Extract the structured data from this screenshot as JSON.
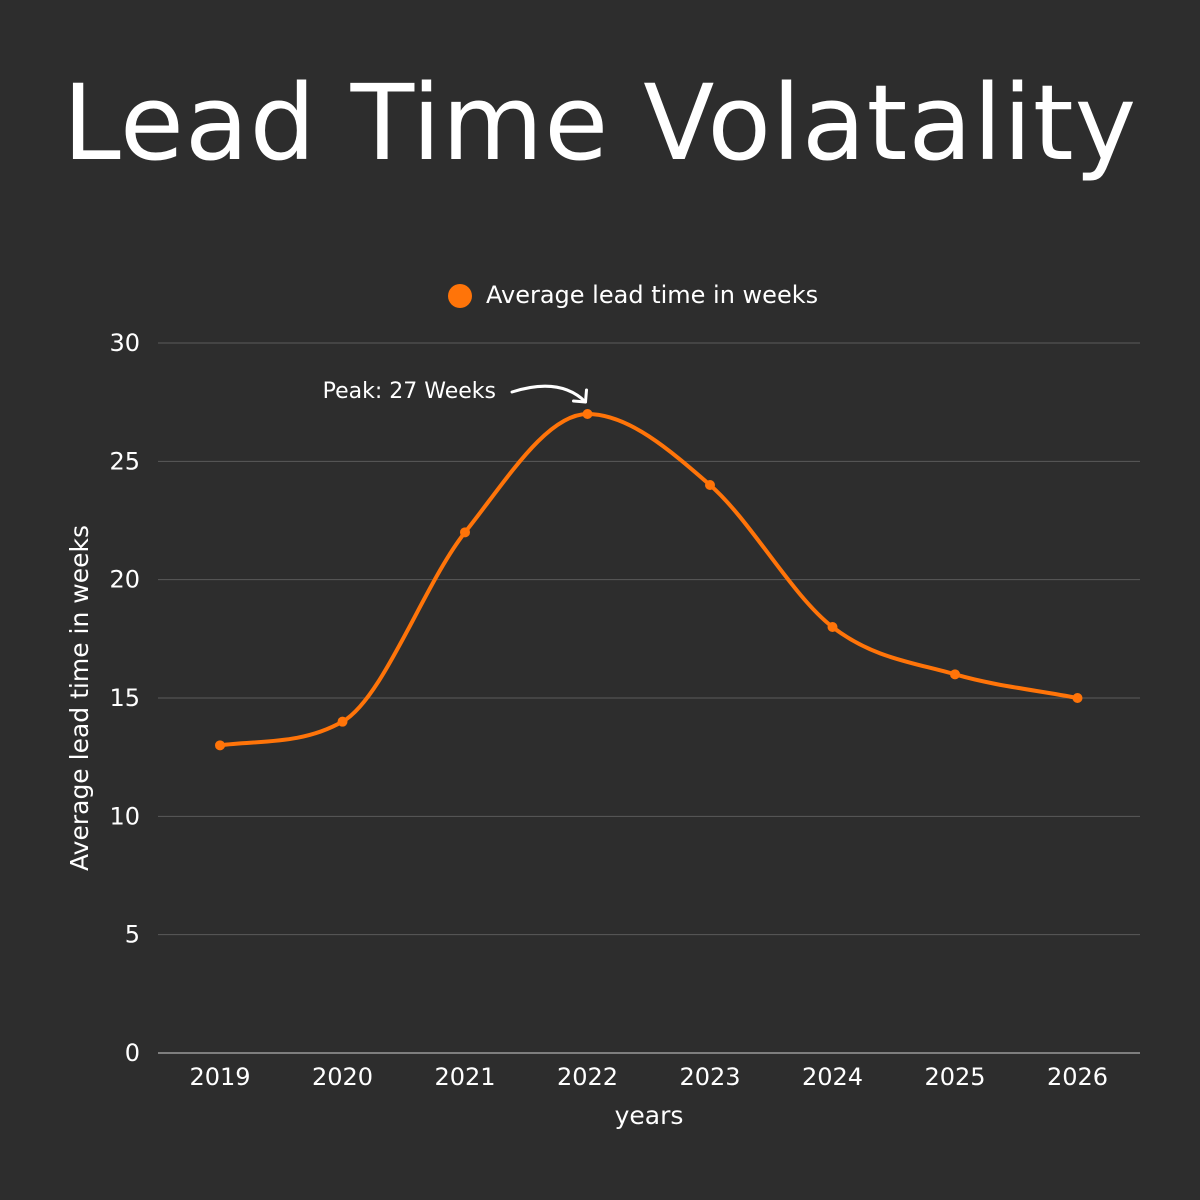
{
  "chart_data": {
    "type": "line",
    "title": "Lead Time Volatality",
    "xlabel": "years",
    "ylabel": "Average lead time in weeks",
    "categories": [
      "2019",
      "2020",
      "2021",
      "2022",
      "2023",
      "2024",
      "2025",
      "2026"
    ],
    "series": [
      {
        "name": "Average lead time in weeks",
        "values": [
          13,
          14,
          22,
          27,
          24,
          18,
          16,
          15
        ],
        "color": "#ff7409"
      }
    ],
    "ylim": [
      0,
      30
    ],
    "yticks": [
      "0",
      "5",
      "10",
      "15",
      "20",
      "25",
      "30"
    ],
    "grid": true,
    "legend": "top-center",
    "annotation": {
      "text": "Peak: 27 Weeks",
      "category": "2022",
      "value": 27
    },
    "colors": {
      "background": "#2d2d2d",
      "grid": "#5a5a5a",
      "text": "#ffffff"
    }
  }
}
